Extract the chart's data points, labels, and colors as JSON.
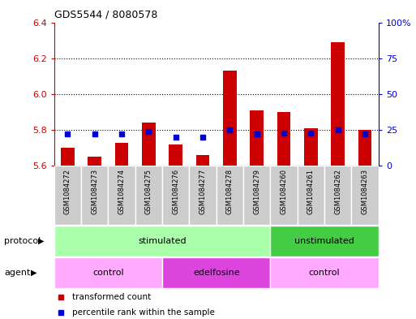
{
  "title": "GDS5544 / 8080578",
  "samples": [
    "GSM1084272",
    "GSM1084273",
    "GSM1084274",
    "GSM1084275",
    "GSM1084276",
    "GSM1084277",
    "GSM1084278",
    "GSM1084279",
    "GSM1084260",
    "GSM1084261",
    "GSM1084262",
    "GSM1084263"
  ],
  "transformed_counts": [
    5.7,
    5.65,
    5.73,
    5.84,
    5.72,
    5.66,
    6.13,
    5.91,
    5.9,
    5.81,
    6.29,
    5.8
  ],
  "percentile_ranks": [
    22,
    22,
    22,
    24,
    20,
    20,
    25,
    22,
    23,
    23,
    25,
    22
  ],
  "ylim_left": [
    5.6,
    6.4
  ],
  "ylim_right": [
    0,
    100
  ],
  "yticks_left": [
    5.6,
    5.8,
    6.0,
    6.2,
    6.4
  ],
  "yticks_right": [
    0,
    25,
    50,
    75,
    100
  ],
  "ytick_labels_right": [
    "0",
    "25",
    "50",
    "75",
    "100%"
  ],
  "grid_values": [
    5.8,
    6.0,
    6.2
  ],
  "bar_color": "#cc0000",
  "dot_color": "#0000cc",
  "bar_width": 0.5,
  "protocol_labels": [
    {
      "text": "stimulated",
      "start": 0,
      "end": 7,
      "color": "#aaffaa"
    },
    {
      "text": "unstimulated",
      "start": 8,
      "end": 11,
      "color": "#44cc44"
    }
  ],
  "agent_labels": [
    {
      "text": "control",
      "start": 0,
      "end": 3,
      "color": "#ffaaff"
    },
    {
      "text": "edelfosine",
      "start": 4,
      "end": 7,
      "color": "#dd44dd"
    },
    {
      "text": "control",
      "start": 8,
      "end": 11,
      "color": "#ffaaff"
    }
  ],
  "legend_items": [
    {
      "label": "transformed count",
      "color": "#cc0000"
    },
    {
      "label": "percentile rank within the sample",
      "color": "#0000cc"
    }
  ],
  "sample_bg_color": "#cccccc",
  "plot_bg_color": "#ffffff",
  "left_axis_color": "#cc0000",
  "right_axis_color": "#0000cc",
  "protocol_row_label": "protocol",
  "agent_row_label": "agent"
}
